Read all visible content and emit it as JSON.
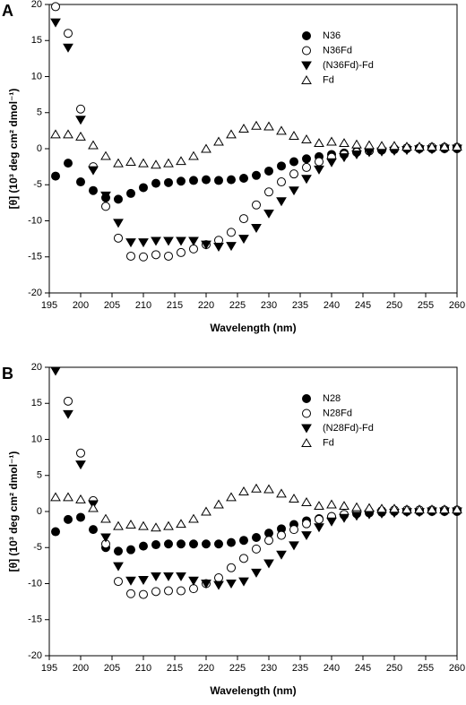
{
  "chart_data": [
    {
      "type": "scatter",
      "panel": "A",
      "x_label": "Wavelength (nm)",
      "y_label": "[θ] (10³ deg cm² dmol⁻¹)",
      "xlim": [
        195,
        260
      ],
      "xticks": [
        195,
        200,
        205,
        210,
        215,
        220,
        225,
        230,
        235,
        240,
        245,
        250,
        255,
        260
      ],
      "ylim": [
        -20,
        20
      ],
      "yticks": [
        -20,
        -15,
        -10,
        -5,
        0,
        5,
        10,
        15,
        20
      ],
      "legend": "upper-right",
      "x": [
        196,
        198,
        200,
        202,
        204,
        206,
        208,
        210,
        212,
        214,
        216,
        218,
        220,
        222,
        224,
        226,
        228,
        230,
        232,
        234,
        236,
        238,
        240,
        242,
        244,
        246,
        248,
        250,
        252,
        254,
        256,
        258,
        260
      ],
      "series": [
        {
          "name": "N36",
          "color": "#000000",
          "marker": "filled-circle",
          "values": [
            -3.8,
            -2,
            -4.6,
            -5.8,
            -6.8,
            -7,
            -6.2,
            -5.4,
            -4.8,
            -4.7,
            -4.5,
            -4.4,
            -4.3,
            -4.4,
            -4.3,
            -4.1,
            -3.7,
            -3.1,
            -2.4,
            -1.8,
            -1.4,
            -1.1,
            -0.8,
            -0.6,
            -0.4,
            -0.3,
            -0.2,
            -0.1,
            0,
            0,
            0,
            0,
            0
          ]
        },
        {
          "name": "N36Fd",
          "color": "#000000",
          "marker": "open-circle",
          "values": [
            19.7,
            16,
            5.5,
            -2.5,
            -8,
            -12.4,
            -14.9,
            -15,
            -14.7,
            -14.9,
            -14.4,
            -13.9,
            -13.3,
            -12.7,
            -11.6,
            -9.7,
            -7.8,
            -6,
            -4.6,
            -3.5,
            -2.6,
            -1.8,
            -1.2,
            -0.8,
            -0.5,
            -0.3,
            -0.1,
            0,
            0.1,
            0.1,
            0.2,
            0.2,
            0.2
          ]
        },
        {
          "name": "(N36Fd)-Fd",
          "color": "#000000",
          "marker": "filled-triangle-down",
          "values": [
            17.5,
            14,
            4,
            -3,
            -6.5,
            -10.3,
            -13,
            -13,
            -12.8,
            -12.8,
            -12.8,
            -12.8,
            -13.3,
            -13.6,
            -13.5,
            -12.5,
            -11,
            -9,
            -7.3,
            -5.8,
            -4.2,
            -2.9,
            -1.9,
            -1.2,
            -0.8,
            -0.5,
            -0.4,
            -0.3,
            -0.2,
            -0.1,
            -0.1,
            0,
            0
          ]
        },
        {
          "name": "Fd",
          "color": "#000000",
          "marker": "open-triangle-up",
          "values": [
            2,
            2,
            1.7,
            0.5,
            -1,
            -2,
            -1.8,
            -2,
            -2.2,
            -2,
            -1.7,
            -1,
            0,
            1,
            2,
            2.8,
            3.2,
            3.1,
            2.5,
            1.8,
            1.3,
            0.8,
            1,
            0.8,
            0.6,
            0.5,
            0.4,
            0.4,
            0.3,
            0.3,
            0.3,
            0.3,
            0.3
          ]
        }
      ]
    },
    {
      "type": "scatter",
      "panel": "B",
      "x_label": "Wavelength (nm)",
      "y_label": "[θ] (10³ deg cm² dmol⁻¹)",
      "xlim": [
        195,
        260
      ],
      "xticks": [
        195,
        200,
        205,
        210,
        215,
        220,
        225,
        230,
        235,
        240,
        245,
        250,
        255,
        260
      ],
      "ylim": [
        -20,
        20
      ],
      "yticks": [
        -20,
        -15,
        -10,
        -5,
        0,
        5,
        10,
        15,
        20
      ],
      "legend": "upper-right",
      "x": [
        196,
        198,
        200,
        202,
        204,
        206,
        208,
        210,
        212,
        214,
        216,
        218,
        220,
        222,
        224,
        226,
        228,
        230,
        232,
        234,
        236,
        238,
        240,
        242,
        244,
        246,
        248,
        250,
        252,
        254,
        256,
        258,
        260
      ],
      "series": [
        {
          "name": "N28",
          "color": "#000000",
          "marker": "filled-circle",
          "values": [
            -2.8,
            -1.1,
            -0.8,
            -2.5,
            -5,
            -5.5,
            -5.3,
            -4.8,
            -4.6,
            -4.5,
            -4.5,
            -4.5,
            -4.5,
            -4.5,
            -4.3,
            -4,
            -3.6,
            -3,
            -2.4,
            -1.8,
            -1.3,
            -1,
            -0.7,
            -0.5,
            -0.3,
            -0.2,
            -0.1,
            0,
            0,
            0,
            0,
            0,
            0
          ]
        },
        {
          "name": "N28Fd",
          "color": "#000000",
          "marker": "open-circle",
          "values": [
            null,
            15.3,
            8.1,
            1.5,
            -4.5,
            -9.7,
            -11.4,
            -11.5,
            -11.1,
            -11,
            -11,
            -10.7,
            -10,
            -9.2,
            -7.8,
            -6.5,
            -5.2,
            -4,
            -3.3,
            -2.5,
            -1.7,
            -1.1,
            -0.7,
            -0.4,
            -0.2,
            0,
            0.1,
            0.2,
            0.2,
            0.2,
            0.2,
            0.2,
            0.2
          ]
        },
        {
          "name": "(N28Fd)-Fd",
          "color": "#000000",
          "marker": "filled-triangle-down",
          "values": [
            19.5,
            13.5,
            6.5,
            1,
            -3.6,
            -7.6,
            -9.6,
            -9.5,
            -9,
            -9,
            -9,
            -9.6,
            -10,
            -10.2,
            -10,
            -9.7,
            -8.5,
            -7.2,
            -6,
            -4.7,
            -3.3,
            -2.2,
            -1.4,
            -0.9,
            -0.6,
            -0.4,
            -0.3,
            -0.2,
            -0.1,
            -0.1,
            0,
            0,
            0
          ]
        },
        {
          "name": "Fd",
          "color": "#000000",
          "marker": "open-triangle-up",
          "values": [
            2,
            2,
            1.7,
            0.5,
            -1,
            -2,
            -1.8,
            -2,
            -2.2,
            -2,
            -1.7,
            -1,
            0,
            1,
            2,
            2.8,
            3.2,
            3.1,
            2.5,
            1.8,
            1.3,
            0.8,
            1,
            0.8,
            0.6,
            0.5,
            0.4,
            0.4,
            0.3,
            0.3,
            0.3,
            0.3,
            0.3
          ]
        }
      ]
    }
  ]
}
